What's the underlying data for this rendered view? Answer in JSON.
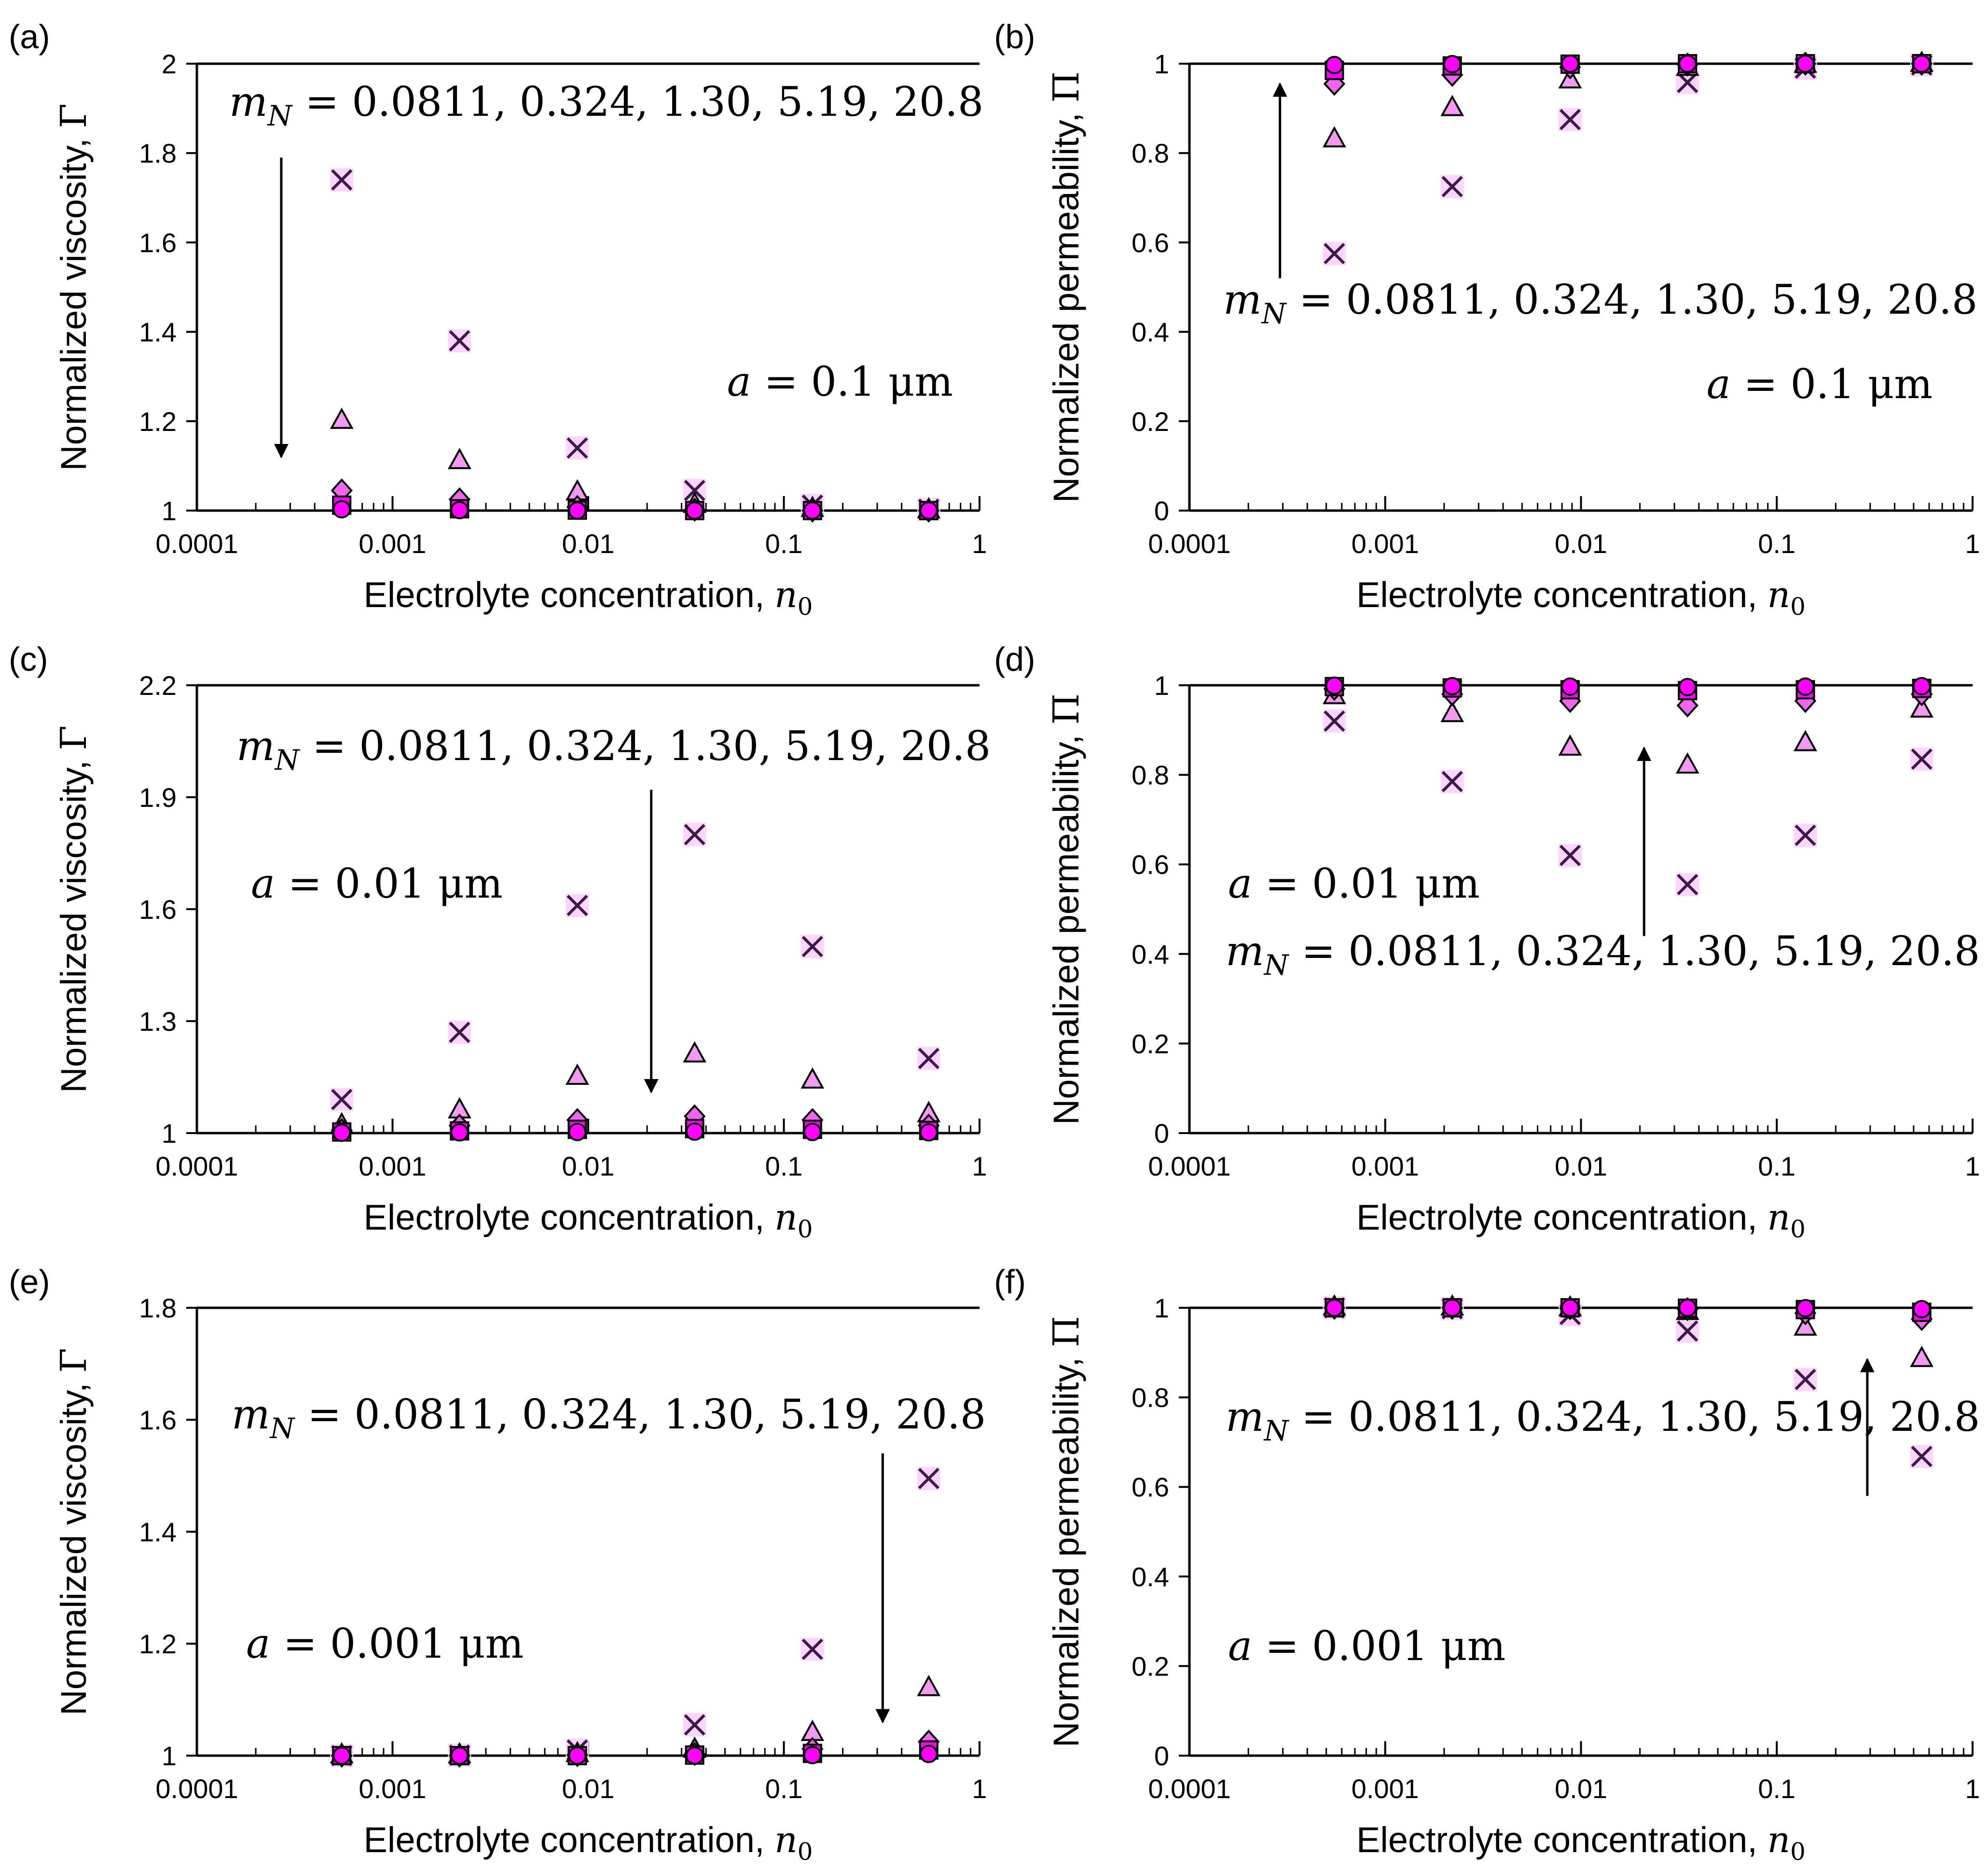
{
  "figure": {
    "x_categories": [
      "0.0811",
      "0.324",
      "1.30",
      "5.19",
      "20.8"
    ]
  },
  "chart_data": [
    {
      "type": "scatter",
      "id": "a",
      "panel_label": "(a)",
      "xlabel_text": "Electrolyte concentration,",
      "xlabel_var": "n",
      "xlabel_sub": "0",
      "ylabel_text": "Normalized viscosity,",
      "ylabel_sym": "Γ",
      "xscale": "log",
      "xlim": [
        0.0001,
        1
      ],
      "xticks": [
        0.0001,
        0.001,
        0.01,
        0.1,
        1
      ],
      "xticklabels": [
        "0.0001",
        "0.001",
        "0.01",
        "0.1",
        "1"
      ],
      "ylim": [
        1,
        2
      ],
      "yticks": [
        1,
        1.2,
        1.4,
        1.6,
        1.8,
        2
      ],
      "yticklabels": [
        "1",
        "1.2",
        "1.4",
        "1.6",
        "1.8",
        "2"
      ],
      "mN_text": "m_N = 0.0811, 0.324, 1.30, 5.19, 20.8",
      "mN_lead": "m",
      "mN_sub": "N",
      "mN_rest": " = 0.0811, 0.324, 1.30, 5.19, 20.8",
      "a_text": "a = 0.1 μm",
      "a_var": "a",
      "a_rest": " = 0.1 μm",
      "arrow": {
        "x": 0.00027,
        "y_from": 1.79,
        "y_to": 1.12
      },
      "x": [
        0.00055,
        0.0022,
        0.0088,
        0.035,
        0.14,
        0.55
      ],
      "series": [
        {
          "name": "m_N = 0.0811",
          "marker": "circle",
          "values": [
            1.003,
            1.001,
            1.0,
            1.0,
            1.0,
            1.0
          ]
        },
        {
          "name": "m_N = 0.324",
          "marker": "square",
          "values": [
            1.012,
            1.004,
            1.001,
            1.0,
            1.0,
            1.0
          ]
        },
        {
          "name": "m_N = 1.30",
          "marker": "diamond",
          "values": [
            1.045,
            1.025,
            1.008,
            1.002,
            1.0,
            1.0
          ]
        },
        {
          "name": "m_N = 5.19",
          "marker": "triangle",
          "values": [
            1.2,
            1.11,
            1.04,
            1.012,
            1.003,
            1.0
          ]
        },
        {
          "name": "m_N = 20.8",
          "marker": "cross",
          "values": [
            1.74,
            1.38,
            1.14,
            1.045,
            1.012,
            1.003
          ]
        }
      ]
    },
    {
      "type": "scatter",
      "id": "b",
      "panel_label": "(b)",
      "xlabel_text": "Electrolyte concentration,",
      "xlabel_var": "n",
      "xlabel_sub": "0",
      "ylabel_text": "Normalized permeability,",
      "ylabel_sym": "Π",
      "xscale": "log",
      "xlim": [
        0.0001,
        1
      ],
      "xticks": [
        0.0001,
        0.001,
        0.01,
        0.1,
        1
      ],
      "xticklabels": [
        "0.0001",
        "0.001",
        "0.01",
        "0.1",
        "1"
      ],
      "ylim": [
        0,
        1
      ],
      "yticks": [
        0,
        0.2,
        0.4,
        0.6,
        0.8,
        1
      ],
      "yticklabels": [
        "0",
        "0.2",
        "0.4",
        "0.6",
        "0.8",
        "1"
      ],
      "mN_text": "m_N = 0.0811, 0.324, 1.30, 5.19, 20.8",
      "mN_lead": "m",
      "mN_sub": "N",
      "mN_rest": " = 0.0811, 0.324, 1.30, 5.19, 20.8",
      "a_text": "a = 0.1 μm",
      "a_var": "a",
      "a_rest": " = 0.1 μm",
      "arrow": {
        "x": 0.00029,
        "y_from": 0.52,
        "y_to": 0.955
      },
      "x": [
        0.00055,
        0.0022,
        0.0088,
        0.035,
        0.14,
        0.55
      ],
      "series": [
        {
          "name": "m_N = 0.0811",
          "marker": "circle",
          "values": [
            0.997,
            0.999,
            1.0,
            1.0,
            1.0,
            1.0
          ]
        },
        {
          "name": "m_N = 0.324",
          "marker": "square",
          "values": [
            0.985,
            0.995,
            0.999,
            1.0,
            1.0,
            1.0
          ]
        },
        {
          "name": "m_N = 1.30",
          "marker": "diamond",
          "values": [
            0.955,
            0.975,
            0.992,
            0.998,
            1.0,
            1.0
          ]
        },
        {
          "name": "m_N = 5.19",
          "marker": "triangle",
          "values": [
            0.83,
            0.9,
            0.962,
            0.99,
            0.997,
            0.999
          ]
        },
        {
          "name": "m_N = 20.8",
          "marker": "cross",
          "values": [
            0.575,
            0.725,
            0.875,
            0.958,
            0.99,
            0.997
          ]
        }
      ]
    },
    {
      "type": "scatter",
      "id": "c",
      "panel_label": "(c)",
      "xlabel_text": "Electrolyte concentration,",
      "xlabel_var": "n",
      "xlabel_sub": "0",
      "ylabel_text": "Normalized viscosity,",
      "ylabel_sym": "Γ",
      "xscale": "log",
      "xlim": [
        0.0001,
        1
      ],
      "xticks": [
        0.0001,
        0.001,
        0.01,
        0.1,
        1
      ],
      "xticklabels": [
        "0.0001",
        "0.001",
        "0.01",
        "0.1",
        "1"
      ],
      "ylim": [
        1,
        2.2
      ],
      "yticks": [
        1,
        1.3,
        1.6,
        1.9,
        2.2
      ],
      "yticklabels": [
        "1",
        "1.3",
        "1.6",
        "1.9",
        "2.2"
      ],
      "mN_text": "m_N = 0.0811, 0.324, 1.30, 5.19, 20.8",
      "mN_lead": "m",
      "mN_sub": "N",
      "mN_rest": " = 0.0811, 0.324, 1.30, 5.19, 20.8",
      "a_text": "a = 0.01 μm",
      "a_var": "a",
      "a_rest": " = 0.01 μm",
      "arrow": {
        "x": 0.021,
        "y_from": 1.92,
        "y_to": 1.11
      },
      "x": [
        0.00055,
        0.0022,
        0.0088,
        0.035,
        0.14,
        0.55
      ],
      "series": [
        {
          "name": "m_N = 0.0811",
          "marker": "circle",
          "values": [
            1.001,
            1.002,
            1.003,
            1.004,
            1.003,
            1.002
          ]
        },
        {
          "name": "m_N = 0.324",
          "marker": "square",
          "values": [
            1.003,
            1.006,
            1.01,
            1.012,
            1.01,
            1.007
          ]
        },
        {
          "name": "m_N = 1.30",
          "marker": "diamond",
          "values": [
            1.008,
            1.02,
            1.035,
            1.045,
            1.035,
            1.02
          ]
        },
        {
          "name": "m_N = 5.19",
          "marker": "triangle",
          "values": [
            1.02,
            1.06,
            1.15,
            1.21,
            1.14,
            1.05
          ]
        },
        {
          "name": "m_N = 20.8",
          "marker": "cross",
          "values": [
            1.09,
            1.27,
            1.61,
            1.8,
            1.5,
            1.2
          ]
        }
      ]
    },
    {
      "type": "scatter",
      "id": "d",
      "panel_label": "(d)",
      "xlabel_text": "Electrolyte concentration,",
      "xlabel_var": "n",
      "xlabel_sub": "0",
      "ylabel_text": "Normalized permeability,",
      "ylabel_sym": "Π",
      "xscale": "log",
      "xlim": [
        0.0001,
        1
      ],
      "xticks": [
        0.0001,
        0.001,
        0.01,
        0.1,
        1
      ],
      "xticklabels": [
        "0.0001",
        "0.001",
        "0.01",
        "0.1",
        "1"
      ],
      "ylim": [
        0,
        1
      ],
      "yticks": [
        0,
        0.2,
        0.4,
        0.6,
        0.8,
        1
      ],
      "yticklabels": [
        "0",
        "0.2",
        "0.4",
        "0.6",
        "0.8",
        "1"
      ],
      "mN_text": "m_N = 0.0811, 0.324, 1.30, 5.19, 20.8",
      "mN_lead": "m",
      "mN_sub": "N",
      "mN_rest": " = 0.0811, 0.324, 1.30, 5.19, 20.8",
      "a_text": "a = 0.01 μm",
      "a_var": "a",
      "a_rest": " = 0.01 μm",
      "arrow": {
        "x": 0.021,
        "y_from": 0.44,
        "y_to": 0.86
      },
      "x": [
        0.00055,
        0.0022,
        0.0088,
        0.035,
        0.14,
        0.55
      ],
      "series": [
        {
          "name": "m_N = 0.0811",
          "marker": "circle",
          "values": [
            0.999,
            0.998,
            0.997,
            0.996,
            0.997,
            0.998
          ]
        },
        {
          "name": "m_N = 0.324",
          "marker": "square",
          "values": [
            0.997,
            0.994,
            0.99,
            0.988,
            0.99,
            0.993
          ]
        },
        {
          "name": "m_N = 1.30",
          "marker": "diamond",
          "values": [
            0.992,
            0.98,
            0.965,
            0.955,
            0.965,
            0.98
          ]
        },
        {
          "name": "m_N = 5.19",
          "marker": "triangle",
          "values": [
            0.975,
            0.935,
            0.86,
            0.82,
            0.87,
            0.945
          ]
        },
        {
          "name": "m_N = 20.8",
          "marker": "cross",
          "values": [
            0.92,
            0.785,
            0.62,
            0.555,
            0.665,
            0.835
          ]
        }
      ]
    },
    {
      "type": "scatter",
      "id": "e",
      "panel_label": "(e)",
      "xlabel_text": "Electrolyte concentration,",
      "xlabel_var": "n",
      "xlabel_sub": "0",
      "ylabel_text": "Normalized viscosity,",
      "ylabel_sym": "Γ",
      "xscale": "log",
      "xlim": [
        0.0001,
        1
      ],
      "xticks": [
        0.0001,
        0.001,
        0.01,
        0.1,
        1
      ],
      "xticklabels": [
        "0.0001",
        "0.001",
        "0.01",
        "0.1",
        "1"
      ],
      "ylim": [
        1,
        1.8
      ],
      "yticks": [
        1,
        1.2,
        1.4,
        1.6,
        1.8
      ],
      "yticklabels": [
        "1",
        "1.2",
        "1.4",
        "1.6",
        "1.8"
      ],
      "mN_text": "m_N = 0.0811, 0.324, 1.30, 5.19, 20.8",
      "mN_lead": "m",
      "mN_sub": "N",
      "mN_rest": " = 0.0811, 0.324, 1.30, 5.19, 20.8",
      "a_text": "a = 0.001 μm",
      "a_var": "a",
      "a_rest": " = 0.001 μm",
      "arrow": {
        "x": 0.32,
        "y_from": 1.54,
        "y_to": 1.06
      },
      "x": [
        0.00055,
        0.0022,
        0.0088,
        0.035,
        0.14,
        0.55
      ],
      "series": [
        {
          "name": "m_N = 0.0811",
          "marker": "circle",
          "values": [
            1.0,
            1.0,
            1.0,
            1.0,
            1.001,
            1.003
          ]
        },
        {
          "name": "m_N = 0.324",
          "marker": "square",
          "values": [
            1.0,
            1.0,
            1.0,
            1.001,
            1.004,
            1.01
          ]
        },
        {
          "name": "m_N = 1.30",
          "marker": "diamond",
          "values": [
            1.0,
            1.0,
            1.001,
            1.003,
            1.012,
            1.025
          ]
        },
        {
          "name": "m_N = 5.19",
          "marker": "triangle",
          "values": [
            1.0,
            1.0,
            1.002,
            1.01,
            1.04,
            1.12
          ]
        },
        {
          "name": "m_N = 20.8",
          "marker": "cross",
          "values": [
            1.0,
            1.001,
            1.01,
            1.055,
            1.19,
            1.495
          ]
        }
      ]
    },
    {
      "type": "scatter",
      "id": "f",
      "panel_label": "(f)",
      "xlabel_text": "Electrolyte concentration,",
      "xlabel_var": "n",
      "xlabel_sub": "0",
      "ylabel_text": "Normalized permeability,",
      "ylabel_sym": "Π",
      "xscale": "log",
      "xlim": [
        0.0001,
        1
      ],
      "xticks": [
        0.0001,
        0.001,
        0.01,
        0.1,
        1
      ],
      "xticklabels": [
        "0.0001",
        "0.001",
        "0.01",
        "0.1",
        "1"
      ],
      "ylim": [
        0,
        1
      ],
      "yticks": [
        0,
        0.2,
        0.4,
        0.6,
        0.8,
        1
      ],
      "yticklabels": [
        "0",
        "0.2",
        "0.4",
        "0.6",
        "0.8",
        "1"
      ],
      "mN_text": "m_N = 0.0811, 0.324, 1.30, 5.19, 20.8",
      "mN_lead": "m",
      "mN_sub": "N",
      "mN_rest": " = 0.0811, 0.324, 1.30, 5.19, 20.8",
      "a_text": "a = 0.001 μm",
      "a_var": "a",
      "a_rest": " = 0.001 μm",
      "arrow": {
        "x": 0.29,
        "y_from": 0.58,
        "y_to": 0.885
      },
      "x": [
        0.00055,
        0.0022,
        0.0088,
        0.035,
        0.14,
        0.55
      ],
      "series": [
        {
          "name": "m_N = 0.0811",
          "marker": "circle",
          "values": [
            1.0,
            1.0,
            1.0,
            1.0,
            0.999,
            0.997
          ]
        },
        {
          "name": "m_N = 0.324",
          "marker": "square",
          "values": [
            1.0,
            1.0,
            1.0,
            0.999,
            0.996,
            0.99
          ]
        },
        {
          "name": "m_N = 1.30",
          "marker": "diamond",
          "values": [
            1.0,
            1.0,
            0.999,
            0.997,
            0.988,
            0.975
          ]
        },
        {
          "name": "m_N = 5.19",
          "marker": "triangle",
          "values": [
            1.0,
            1.0,
            0.998,
            0.99,
            0.955,
            0.885
          ]
        },
        {
          "name": "m_N = 20.8",
          "marker": "cross",
          "values": [
            1.0,
            0.998,
            0.985,
            0.948,
            0.84,
            0.668
          ]
        }
      ]
    }
  ],
  "style": {
    "axis_color": "#000000",
    "fill_circle": "#ff00ff",
    "fill_square": "#ff00ff",
    "fill_diamond": "#ee66ee",
    "fill_triangle": "#f29af2",
    "cross_bg": "#ffd4ff",
    "cross_color": "#3a1a4a",
    "marker_stroke": "#000000"
  }
}
